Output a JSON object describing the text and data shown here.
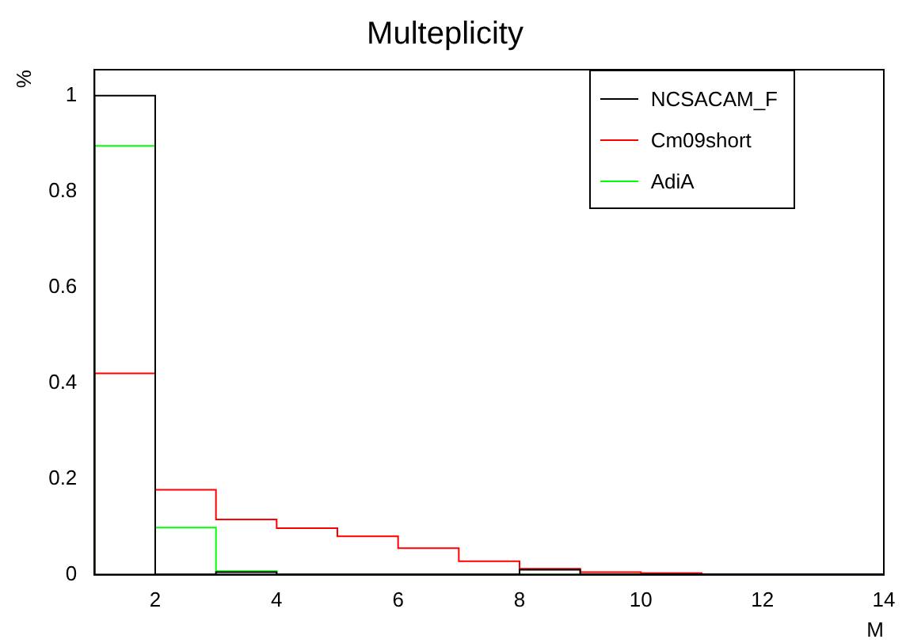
{
  "chart_data": {
    "type": "histogram",
    "title": "Multeplicity",
    "xlabel": "M",
    "ylabel": "%",
    "bins": [
      1,
      2,
      3,
      4,
      5,
      6,
      7,
      8,
      9,
      10,
      11,
      12,
      13,
      14
    ],
    "series": [
      {
        "name": "NCSACAM_F",
        "color": "#000000",
        "values": [
          1,
          0,
          0.005,
          0,
          0,
          0,
          0,
          0.01,
          0,
          0,
          0,
          0,
          0
        ]
      },
      {
        "name": "Cm09short",
        "color": "#ff0000",
        "values": [
          0.42,
          0.177,
          0.115,
          0.097,
          0.08,
          0.055,
          0.028,
          0.012,
          0.005,
          0.003,
          0,
          0,
          0
        ]
      },
      {
        "name": "AdiA",
        "color": "#00ff00",
        "values": [
          0.895,
          0.098,
          0.007,
          0,
          0,
          0,
          0,
          0,
          0,
          0,
          0,
          0,
          0
        ]
      }
    ],
    "xlim": [
      1,
      14
    ],
    "ylim": [
      0,
      1.054
    ],
    "xticks": [
      2,
      4,
      6,
      8,
      10,
      12,
      14
    ],
    "yticks": [
      0,
      0.2,
      0.4,
      0.6,
      0.8,
      1
    ],
    "grid": false,
    "legend": "top right"
  }
}
